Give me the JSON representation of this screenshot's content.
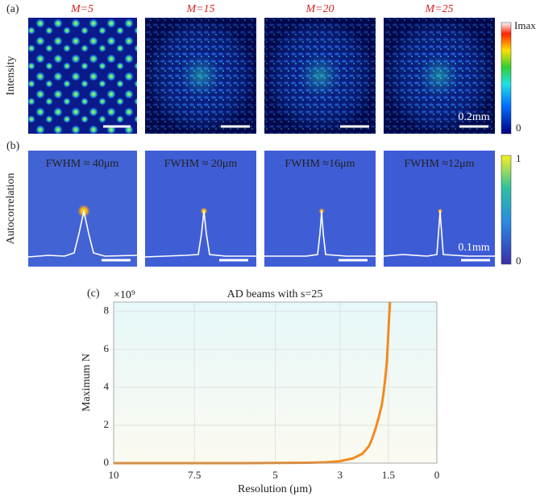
{
  "panels": {
    "a": {
      "label": "(a)",
      "titles": [
        "M=5",
        "M=15",
        "M=20",
        "M=25"
      ],
      "row_label": "Intensity",
      "scale": "0.2mm",
      "colorbar_max": "Imax",
      "colorbar_min": "0"
    },
    "b": {
      "label": "(b)",
      "fwhm": [
        "FWHM ≈ 40μm",
        "FWHM ≈ 20μm",
        "FWHM ≈16μm",
        "FWHM ≈12μm"
      ],
      "row_label": "Autocorrelation",
      "scale": "0.1mm",
      "colorbar_max": "1",
      "colorbar_min": "0"
    },
    "c": {
      "label": "(c)"
    }
  },
  "chart_data": {
    "type": "line",
    "title": "AD beams with s=25",
    "x_label": "Resolution (μm)",
    "y_label": "Maximum N",
    "y_multiplier": "×10⁹",
    "x": [
      10,
      8,
      6,
      5,
      4,
      3.5,
      3,
      2.6,
      2.3,
      2.1,
      2,
      1.9,
      1.8,
      1.7,
      1.65,
      1.6,
      1.55,
      1.52,
      1.5,
      1.48,
      1.45
    ],
    "series": [
      {
        "name": "AD beams",
        "color": "#f28a1f",
        "values": [
          0,
          0,
          0,
          0.01,
          0.02,
          0.04,
          0.1,
          0.25,
          0.5,
          0.9,
          1.3,
          1.8,
          2.4,
          3.1,
          3.7,
          4.4,
          5.3,
          6.2,
          6.9,
          7.6,
          8.5
        ]
      }
    ],
    "xlim": [
      10,
      0
    ],
    "xticks": [
      10,
      7.5,
      5,
      3,
      1.5,
      0
    ],
    "ylim": [
      0,
      8.5
    ],
    "yticks": [
      0,
      2,
      4,
      6,
      8
    ],
    "grid": true
  }
}
